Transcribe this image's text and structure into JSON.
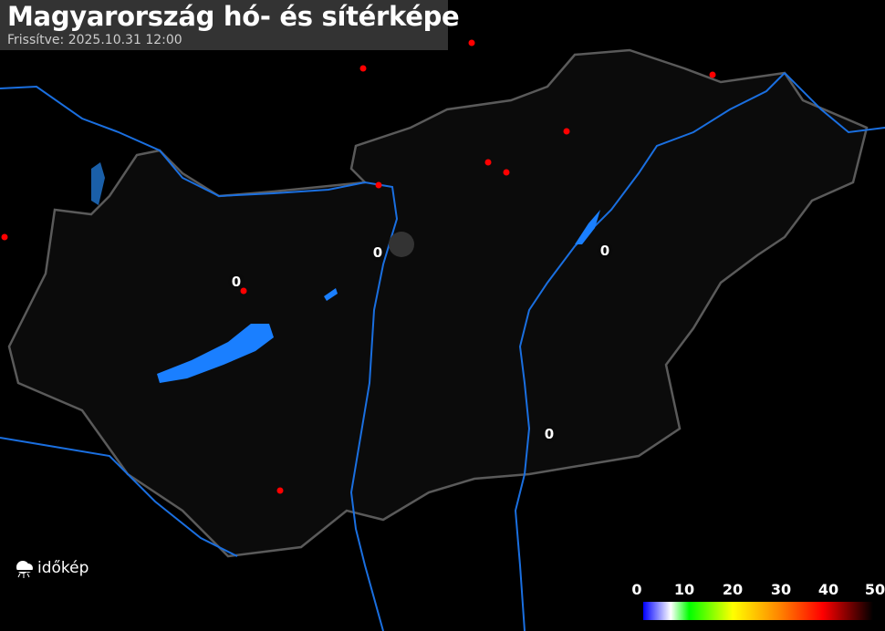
{
  "header": {
    "title": "Magyarország hó- és sítérképe",
    "updated": "Frissítve: 2025.10.31 12:00"
  },
  "stations": [
    {
      "value": "0"
    },
    {
      "value": "0"
    },
    {
      "value": "0"
    },
    {
      "value": "0"
    }
  ],
  "logo": {
    "text": "időkép"
  },
  "legend": {
    "labels": [
      "0",
      "10",
      "20",
      "30",
      "40",
      "50"
    ],
    "unit_range": [
      0,
      50
    ],
    "colors": [
      "#0000ff",
      "#ffffff",
      "#00ff00",
      "#ffff00",
      "#ff8000",
      "#ff0000",
      "#000000"
    ]
  },
  "colors": {
    "background": "#000000",
    "water": "#1a7fff",
    "border": "#555555",
    "station_dot": "#ff0000"
  }
}
